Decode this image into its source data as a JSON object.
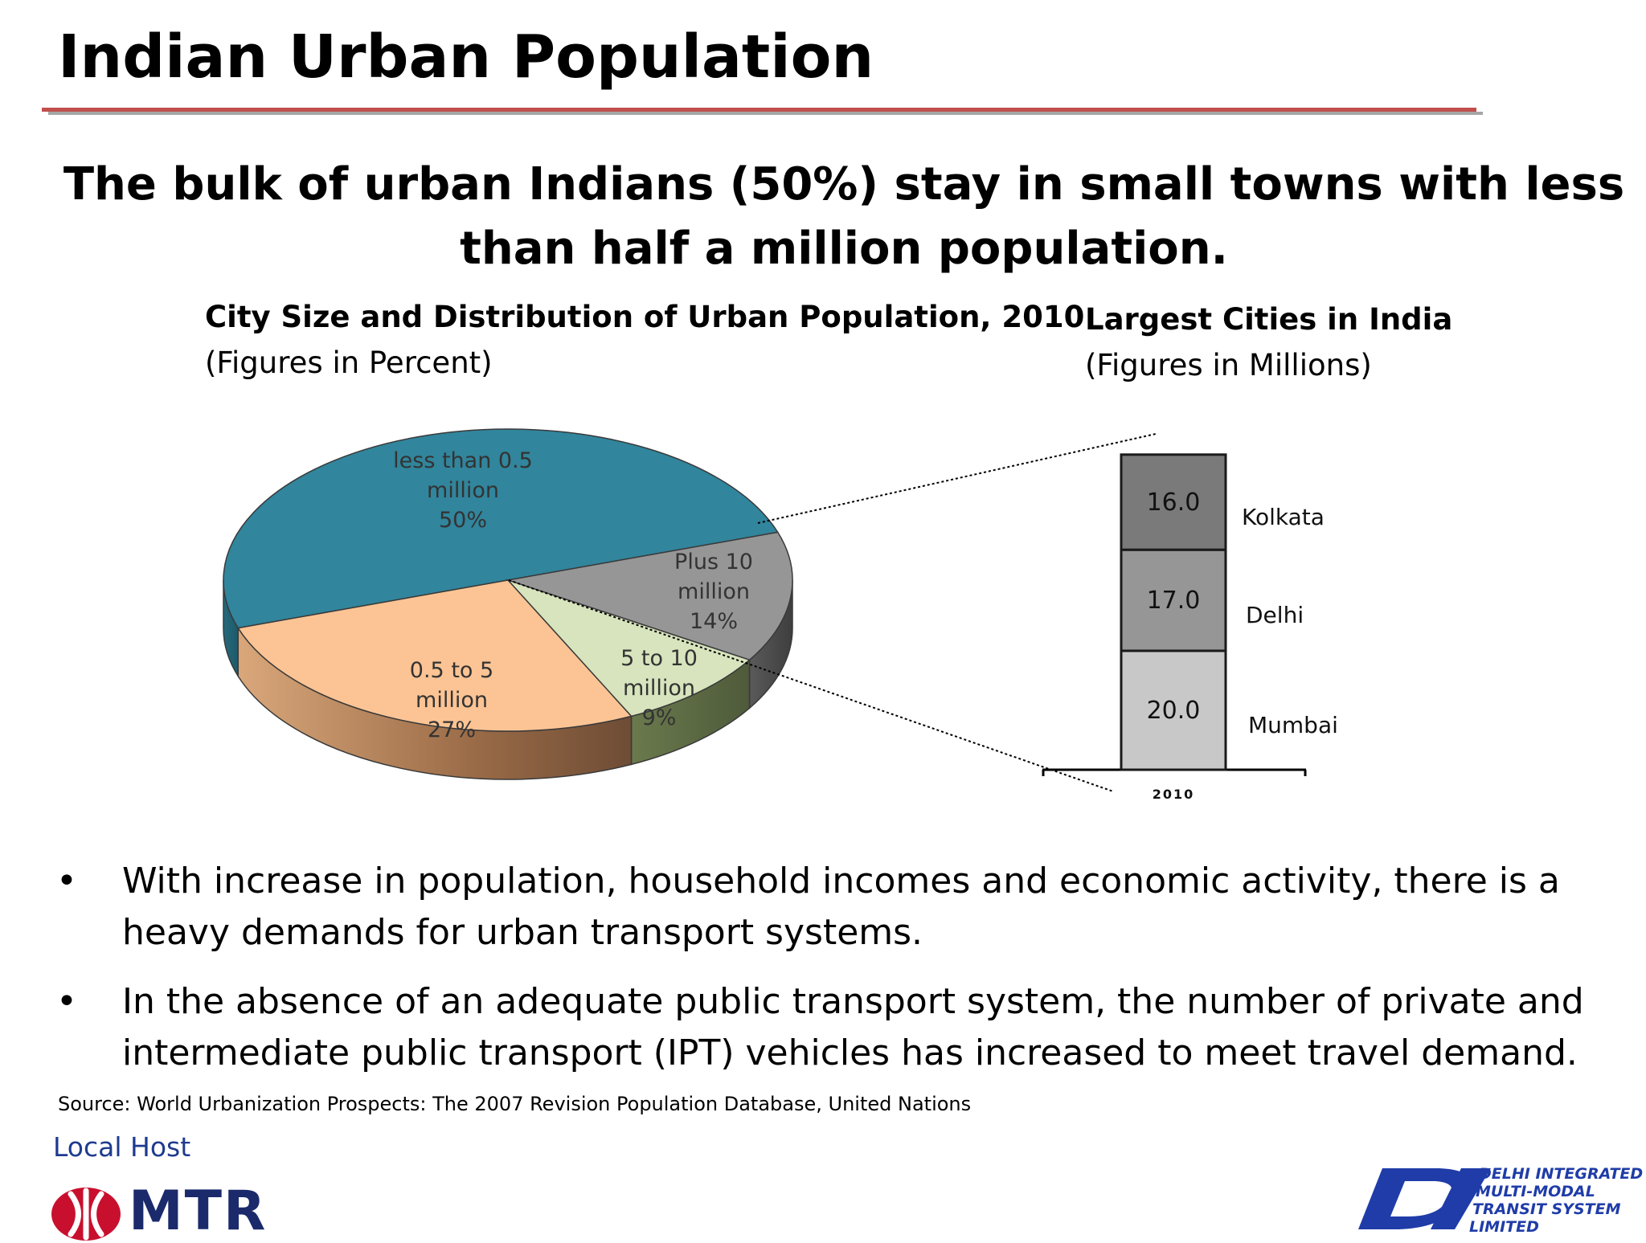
{
  "slide": {
    "title": "Indian Urban Population",
    "headline": "The bulk of urban Indians (50%) stay in small towns with less than half a million population."
  },
  "chart_data": [
    {
      "type": "pie",
      "title": "City Size and Distribution of Urban Population, 2010",
      "subtitle": "(Figures in Percent)",
      "slices": [
        {
          "label_lines": [
            "less than 0.5",
            "million",
            "50%"
          ],
          "value": 50,
          "color": "#31859c"
        },
        {
          "label_lines": [
            "Plus 10",
            "million",
            "14%"
          ],
          "value": 14,
          "color": "#969696"
        },
        {
          "label_lines": [
            "5 to 10",
            "million",
            "9%"
          ],
          "value": 9,
          "color": "#d7e4bd"
        },
        {
          "label_lines": [
            "0.5 to 5",
            "million",
            "27%"
          ],
          "value": 27,
          "color": "#fcc494"
        }
      ]
    },
    {
      "type": "bar",
      "stacked": true,
      "title": "Largest Cities in India",
      "subtitle": "(Figures in Millions)",
      "categories": [
        "2010"
      ],
      "series": [
        {
          "name": "Mumbai",
          "values": [
            20.0
          ],
          "value_label": "20.0",
          "color": "#c8c8c8"
        },
        {
          "name": "Delhi",
          "values": [
            17.0
          ],
          "value_label": "17.0",
          "color": "#969696"
        },
        {
          "name": "Kolkata",
          "values": [
            16.0
          ],
          "value_label": "16.0",
          "color": "#7a7a7a"
        }
      ]
    }
  ],
  "bullets": [
    {
      "symbol": "•",
      "text": "With increase in population, household incomes and economic activity, there is a heavy demands for urban transport systems."
    },
    {
      "symbol": "•",
      "text": "In the absence of an adequate public transport system, the number of private and intermediate public transport (IPT) vehicles has increased to meet travel demand."
    }
  ],
  "source": "Source: World Urbanization Prospects: The 2007 Revision Population Database, United Nations",
  "footer": {
    "local_host": "Local Host",
    "mtr_logo": {
      "text": "MTR",
      "icon": "mtr-logo-icon",
      "color": "#c8102e"
    },
    "dimts_logo": {
      "lines": [
        "DELHI INTEGRATED",
        "MULTI-MODAL",
        "TRANSIT SYSTEM",
        "LIMITED"
      ],
      "icon": "dimts-logo-icon",
      "color": "#1f3ca8"
    }
  }
}
